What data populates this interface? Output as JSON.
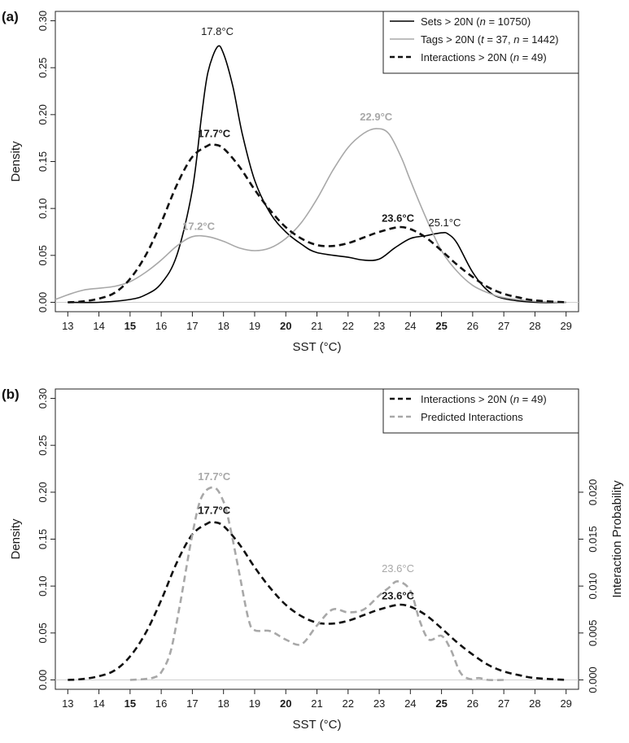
{
  "chart_data": [
    {
      "type": "line",
      "panel_label": "(a)",
      "xlabel": "SST (°C)",
      "ylabel": "Density",
      "xlim": [
        12.6,
        29.4
      ],
      "ylim": [
        -0.01,
        0.31
      ],
      "x_ticks": [
        "13",
        "14",
        "15",
        "16",
        "17",
        "18",
        "19",
        "20",
        "21",
        "22",
        "23",
        "24",
        "25",
        "26",
        "27",
        "28",
        "29"
      ],
      "bold_x_ticks": [
        "15",
        "20",
        "25"
      ],
      "y_ticks": [
        "0.00",
        "0.05",
        "0.10",
        "0.15",
        "0.20",
        "0.25",
        "0.30"
      ],
      "grid": false,
      "legend_position": "top-right",
      "series": [
        {
          "name_parts": [
            "Sets > 20N (",
            "n",
            " = 10750)"
          ],
          "color": "#000000",
          "style": "solid",
          "x": [
            13,
            14,
            15,
            15.5,
            16,
            16.5,
            17,
            17.3,
            17.5,
            17.8,
            18,
            18.3,
            18.6,
            19,
            19.5,
            20,
            20.5,
            21,
            22,
            22.5,
            23,
            23.5,
            24,
            24.5,
            25,
            25.2,
            25.5,
            26,
            26.5,
            27,
            28,
            29
          ],
          "values": [
            0.0,
            0.0,
            0.003,
            0.008,
            0.02,
            0.05,
            0.12,
            0.2,
            0.245,
            0.272,
            0.265,
            0.23,
            0.18,
            0.13,
            0.095,
            0.075,
            0.062,
            0.053,
            0.048,
            0.045,
            0.046,
            0.058,
            0.068,
            0.071,
            0.074,
            0.073,
            0.063,
            0.032,
            0.012,
            0.004,
            0.0,
            0.0
          ]
        },
        {
          "name_parts": [
            "Tags > 20N (",
            "t",
            " = 37, ",
            "n",
            " = 1442)"
          ],
          "color": "#a8a8a8",
          "style": "solid",
          "x": [
            12.6,
            13,
            13.5,
            14,
            14.5,
            15,
            15.5,
            16,
            16.5,
            17,
            17.5,
            18,
            18.5,
            19,
            19.5,
            20,
            20.5,
            21,
            21.5,
            22,
            22.5,
            22.9,
            23.3,
            23.7,
            24,
            24.5,
            25,
            25.5,
            26,
            26.5,
            27,
            28,
            29
          ],
          "values": [
            0.003,
            0.008,
            0.013,
            0.015,
            0.017,
            0.022,
            0.032,
            0.045,
            0.06,
            0.07,
            0.07,
            0.065,
            0.058,
            0.055,
            0.058,
            0.068,
            0.085,
            0.11,
            0.14,
            0.165,
            0.18,
            0.185,
            0.18,
            0.155,
            0.13,
            0.09,
            0.055,
            0.033,
            0.018,
            0.01,
            0.005,
            0.001,
            0.0
          ]
        },
        {
          "name_parts": [
            "Interactions > 20N (",
            "n",
            " = 49)"
          ],
          "color": "#111111",
          "style": "dashed",
          "x": [
            13,
            13.5,
            14,
            14.5,
            15,
            15.5,
            16,
            16.5,
            17,
            17.5,
            17.7,
            18,
            18.5,
            19,
            19.5,
            20,
            20.5,
            21,
            21.5,
            22,
            22.5,
            23,
            23.6,
            24,
            24.5,
            25,
            25.5,
            26,
            26.5,
            27,
            27.5,
            28,
            29
          ],
          "values": [
            0.0,
            0.001,
            0.004,
            0.01,
            0.025,
            0.05,
            0.085,
            0.125,
            0.155,
            0.167,
            0.168,
            0.164,
            0.145,
            0.12,
            0.098,
            0.08,
            0.068,
            0.061,
            0.06,
            0.063,
            0.069,
            0.075,
            0.08,
            0.078,
            0.069,
            0.055,
            0.04,
            0.027,
            0.016,
            0.009,
            0.005,
            0.002,
            0.0
          ]
        }
      ],
      "annotations": [
        {
          "text": "17.8°C",
          "x": 17.8,
          "y": 0.285,
          "color": "#1a1a1a",
          "bold": false
        },
        {
          "text": "17.7°C",
          "x": 17.7,
          "y": 0.176,
          "color": "#1a1a1a",
          "bold": true
        },
        {
          "text": "22.9°C",
          "x": 22.9,
          "y": 0.194,
          "color": "#a8a8a8",
          "bold": true
        },
        {
          "text": "17.2°C",
          "x": 17.2,
          "y": 0.077,
          "color": "#a8a8a8",
          "bold": true
        },
        {
          "text": "23.6°C",
          "x": 23.6,
          "y": 0.086,
          "color": "#1a1a1a",
          "bold": true
        },
        {
          "text": "25.1°C",
          "x": 25.1,
          "y": 0.081,
          "color": "#1a1a1a",
          "bold": false
        }
      ]
    },
    {
      "type": "line",
      "panel_label": "(b)",
      "xlabel": "SST (°C)",
      "ylabel": "Density",
      "y2label": "Interaction Probability",
      "xlim": [
        12.6,
        29.4
      ],
      "ylim": [
        -0.01,
        0.31
      ],
      "y2lim": [
        0.0,
        0.02
      ],
      "x_ticks": [
        "13",
        "14",
        "15",
        "16",
        "17",
        "18",
        "19",
        "20",
        "21",
        "22",
        "23",
        "24",
        "25",
        "26",
        "27",
        "28",
        "29"
      ],
      "bold_x_ticks": [
        "15",
        "20",
        "25"
      ],
      "y_ticks": [
        "0.00",
        "0.05",
        "0.10",
        "0.15",
        "0.20",
        "0.25",
        "0.30"
      ],
      "y2_ticks": [
        "0.000",
        "0.005",
        "0.010",
        "0.015",
        "0.020"
      ],
      "grid": false,
      "legend_position": "top-right",
      "series": [
        {
          "name_parts": [
            "Interactions > 20N (",
            "n",
            " = 49)"
          ],
          "color": "#111111",
          "style": "dashed",
          "x": [
            13,
            13.5,
            14,
            14.5,
            15,
            15.5,
            16,
            16.5,
            17,
            17.5,
            17.7,
            18,
            18.5,
            19,
            19.5,
            20,
            20.5,
            21,
            21.5,
            22,
            22.5,
            23,
            23.6,
            24,
            24.5,
            25,
            25.5,
            26,
            26.5,
            27,
            27.5,
            28,
            29
          ],
          "values": [
            0.0,
            0.001,
            0.004,
            0.01,
            0.025,
            0.05,
            0.085,
            0.125,
            0.155,
            0.167,
            0.168,
            0.164,
            0.145,
            0.12,
            0.098,
            0.08,
            0.068,
            0.061,
            0.06,
            0.063,
            0.069,
            0.075,
            0.08,
            0.078,
            0.069,
            0.055,
            0.04,
            0.027,
            0.016,
            0.009,
            0.005,
            0.002,
            0.0
          ]
        },
        {
          "name_parts": [
            "Predicted Interactions"
          ],
          "color": "#a8a8a8",
          "style": "dashed",
          "axis": "right",
          "x": [
            15,
            15.5,
            15.8,
            16,
            16.3,
            16.6,
            17,
            17.3,
            17.7,
            18,
            18.2,
            18.5,
            18.8,
            19,
            19.5,
            20,
            20.5,
            21,
            21.5,
            22,
            22.5,
            23,
            23.3,
            23.6,
            24,
            24.3,
            24.6,
            25,
            25.3,
            25.6,
            25.9,
            26.2,
            26.5,
            27
          ],
          "values": [
            0.0,
            0.0001,
            0.0003,
            0.0008,
            0.003,
            0.008,
            0.0155,
            0.0195,
            0.0205,
            0.019,
            0.0165,
            0.0115,
            0.0065,
            0.0053,
            0.0052,
            0.0043,
            0.0038,
            0.0058,
            0.0075,
            0.0072,
            0.0075,
            0.009,
            0.0098,
            0.0105,
            0.0095,
            0.0063,
            0.0043,
            0.0047,
            0.0032,
            0.0008,
            0.0001,
            0.0002,
            0.0,
            0.0
          ]
        }
      ],
      "annotations": [
        {
          "text": "17.7°C",
          "x": 17.7,
          "y": 0.213,
          "color": "#a8a8a8",
          "bold": true
        },
        {
          "text": "17.7°C",
          "x": 17.7,
          "y": 0.177,
          "color": "#1a1a1a",
          "bold": true
        },
        {
          "text": "23.6°C",
          "x": 23.6,
          "y": 0.115,
          "color": "#a8a8a8",
          "bold": false
        },
        {
          "text": "23.6°C",
          "x": 23.6,
          "y": 0.086,
          "color": "#1a1a1a",
          "bold": true
        }
      ]
    }
  ]
}
